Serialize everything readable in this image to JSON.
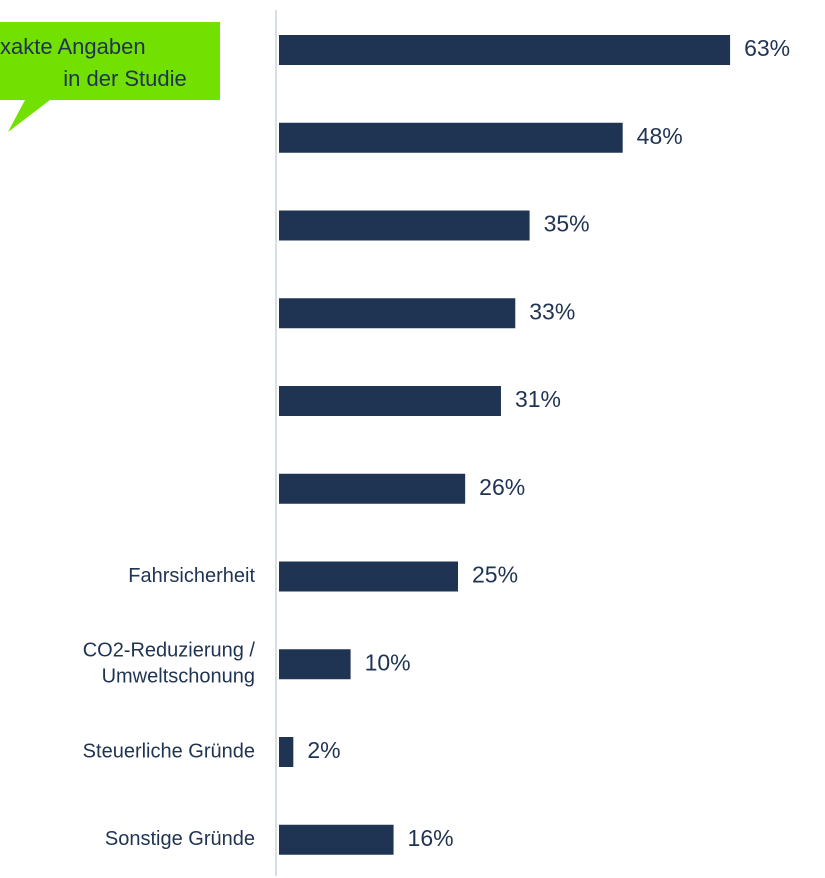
{
  "chart_data": {
    "type": "hbar",
    "categories": [
      null,
      null,
      null,
      null,
      null,
      null,
      "Fahrsicherheit",
      "CO2-Reduzierung /\nUmweltschonung",
      "Steuerliche Gründe",
      "Sonstige Gründe"
    ],
    "values": [
      63,
      48,
      35,
      33,
      31,
      26,
      25,
      10,
      2,
      16
    ],
    "value_labels": [
      "63%",
      "48%",
      "35%",
      "33%",
      "31%",
      "26%",
      "25%",
      "10%",
      "2%",
      "16%"
    ],
    "color": "#1f3352",
    "xlim": [
      0,
      100
    ],
    "annotation": [
      "xakte Angaben",
      "in der Studie"
    ]
  }
}
